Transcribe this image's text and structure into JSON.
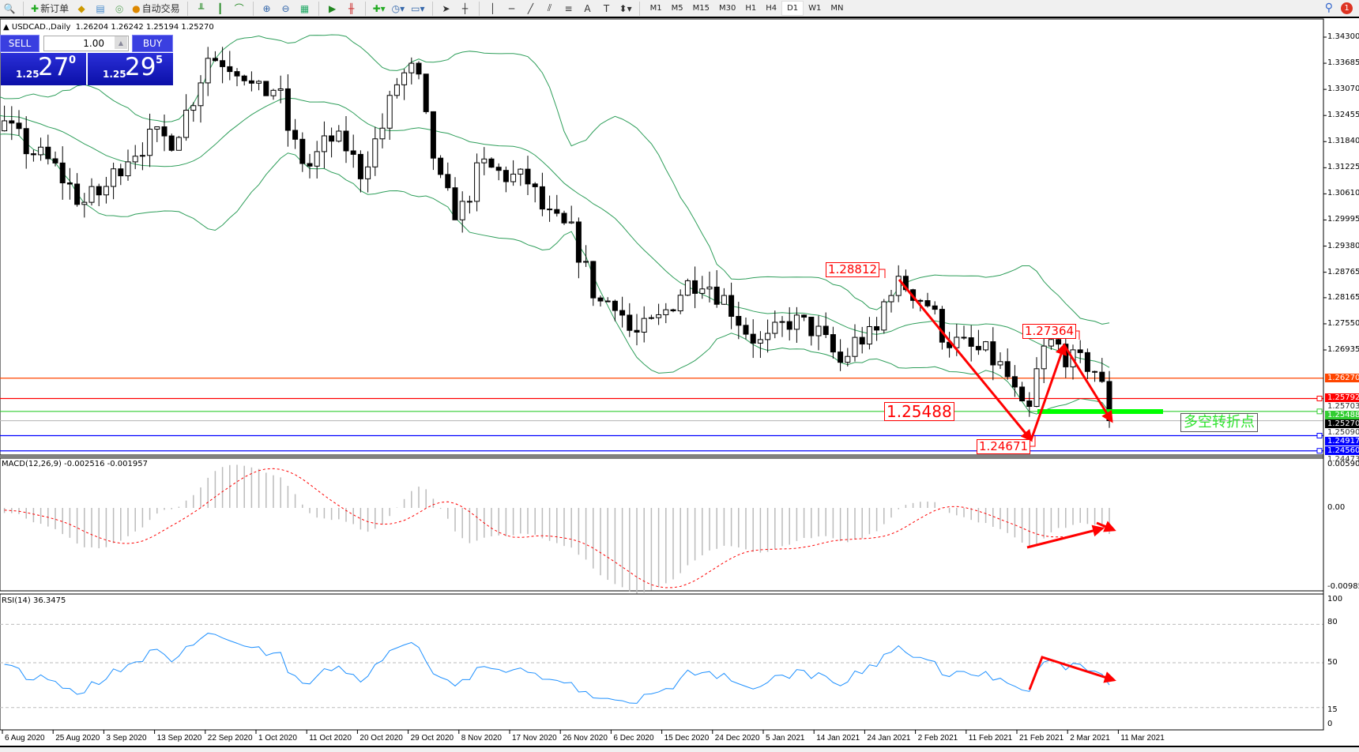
{
  "toolbar": {
    "new_order": "新订单",
    "auto_trading": "自动交易",
    "timeframes": [
      "M1",
      "M5",
      "M15",
      "M30",
      "H1",
      "H4",
      "D1",
      "W1",
      "MN"
    ],
    "active_timeframe": "D1",
    "notification_count": "1",
    "text_tool": "A"
  },
  "chart": {
    "title": "USDCAD.,Daily",
    "ohlc": "1.26204 1.26242 1.25194 1.25270"
  },
  "trade": {
    "sell": "SELL",
    "buy": "BUY",
    "lot": "1.00",
    "bid_prefix": "1.25",
    "bid_big": "27",
    "bid_frac": "0",
    "ask_prefix": "1.25",
    "ask_big": "29",
    "ask_frac": "5"
  },
  "price_axis": [
    "1.34300",
    "1.33685",
    "1.33070",
    "1.32455",
    "1.31840",
    "1.31225",
    "1.30610",
    "1.29995",
    "1.29380",
    "1.28765",
    "1.28165",
    "1.27550",
    "1.26935"
  ],
  "hidden_axis": [
    "1.25703",
    "1.25090",
    "1.24473"
  ],
  "levels": [
    {
      "price": "1.26270",
      "color": "#ff4500"
    },
    {
      "price": "1.25792",
      "color": "#ff0000"
    },
    {
      "price": "1.25488",
      "color": "#32cd32"
    },
    {
      "price": "1.25270",
      "color": "#000000"
    },
    {
      "price": "1.24917",
      "color": "#0000ff"
    },
    {
      "price": "1.24560",
      "color": "#0000ff"
    }
  ],
  "annotations": {
    "high1": "1.28812",
    "high2": "1.27364",
    "level": "1.25488",
    "low": "1.24671",
    "note": "多空转折点"
  },
  "macd": {
    "label": "MACD(12,26,9) -0.002516 -0.001957",
    "axis": [
      "0.005908",
      "0.00",
      "-0.009851"
    ]
  },
  "rsi": {
    "label": "RSI(14) 36.3475",
    "axis": [
      "100",
      "80",
      "50",
      "15",
      "0"
    ]
  },
  "dates": [
    "6 Aug 2020",
    "25 Aug 2020",
    "3 Sep 2020",
    "13 Sep 2020",
    "22 Sep 2020",
    "1 Oct 2020",
    "11 Oct 2020",
    "20 Oct 2020",
    "29 Oct 2020",
    "8 Nov 2020",
    "17 Nov 2020",
    "26 Nov 2020",
    "6 Dec 2020",
    "15 Dec 2020",
    "24 Dec 2020",
    "5 Jan 2021",
    "14 Jan 2021",
    "24 Jan 2021",
    "2 Feb 2021",
    "11 Feb 2021",
    "21 Feb 2021",
    "2 Mar 2021",
    "11 Mar 2021"
  ],
  "colors": {
    "bands": "#2e9e5a",
    "arrows": "#ff0000",
    "macd_signal": "#ff0000",
    "rsi": "#1e90ff",
    "trade_panel": "#1a1fc8"
  }
}
